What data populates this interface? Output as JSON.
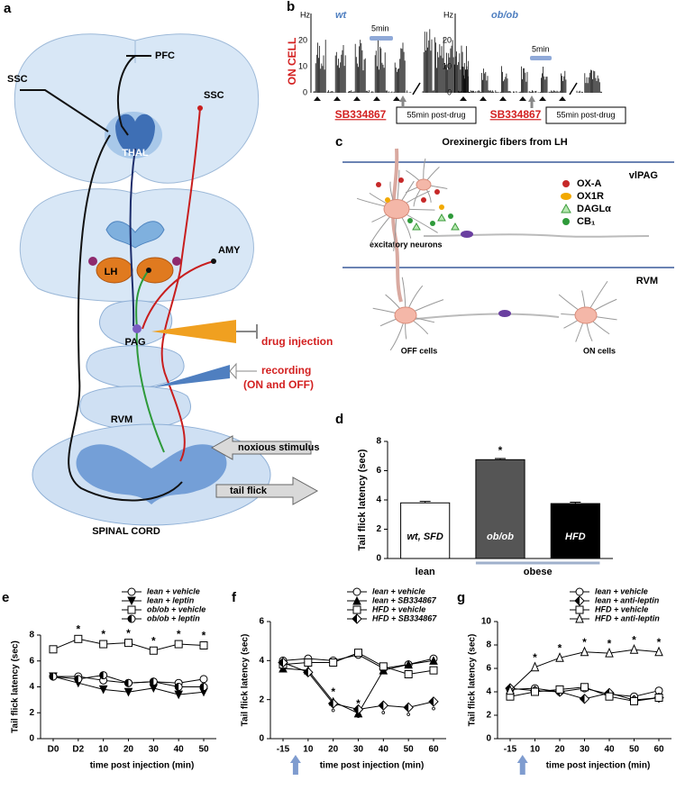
{
  "panel_a": {
    "letter": "a",
    "pfc": "PFC",
    "ssc_left": "SSC",
    "ssc_right": "SSC",
    "thal": "THAL",
    "amy": "AMY",
    "lh": "LH",
    "pag": "PAG",
    "drug_injection": "drug injection",
    "recording": "recording",
    "recording_cells": "(ON and OFF)",
    "rvm": "RVM",
    "noxious_stimulus": "noxious stimulus",
    "tail_flick": "tail flick",
    "spinal_cord": "SPINAL CORD"
  },
  "panel_b": {
    "letter": "b",
    "row_label": "ON CELL",
    "traces": [
      {
        "unit": "Hz",
        "ticks": [
          "20",
          "10",
          "0"
        ],
        "label": "wt",
        "scale_bar": "5min",
        "drug": "SB334867",
        "post_drug": "55min post-drug"
      },
      {
        "unit": "Hz",
        "ticks": [
          "20",
          "10",
          "0"
        ],
        "label": "ob/ob",
        "scale_bar": "5min",
        "drug": "SB334867",
        "post_drug": "55min post-drug"
      }
    ]
  },
  "panel_c": {
    "letter": "c",
    "title": "Orexinergic fibers from LH",
    "top_region": "vlPAG",
    "bottom_region": "RVM",
    "legend": [
      "OX-A",
      "OX1R",
      "DAGLα",
      "CB₁"
    ],
    "excitatory": "excitatory neurons",
    "off_cells": "OFF cells",
    "on_cells": "ON cells"
  },
  "chart_data": [
    {
      "panel": "d",
      "type": "bar",
      "ylabel": "Tail flick latency (sec)",
      "categories": [
        "wt, SFD",
        "ob/ob",
        "HFD"
      ],
      "values": [
        3.8,
        6.75,
        3.75
      ],
      "errors": [
        0.1,
        0.08,
        0.1
      ],
      "colors": [
        "#ffffff",
        "#555555",
        "#000000"
      ],
      "ylim": [
        0,
        8
      ],
      "yticks": [
        0,
        2,
        4,
        6,
        8
      ],
      "groups": [
        {
          "label": "lean",
          "members": [
            "wt, SFD"
          ]
        },
        {
          "label": "obese",
          "members": [
            "ob/ob",
            "HFD"
          ]
        }
      ],
      "significance": [
        {
          "label": "*",
          "at": [
            "ob/ob"
          ]
        }
      ]
    },
    {
      "panel": "e",
      "type": "line",
      "ylabel": "Tail flick latency (sec)",
      "xlabel": "time post injection (min)",
      "categories": [
        "D0",
        "D2",
        "10",
        "20",
        "30",
        "40",
        "50"
      ],
      "ylim": [
        0,
        8
      ],
      "yticks": [
        0,
        2,
        4,
        6,
        8
      ],
      "series": [
        {
          "name": "lean + vehicle",
          "color": "#000000",
          "marker": "circle-open",
          "values": [
            4.8,
            4.8,
            4.5,
            4.3,
            4.4,
            4.3,
            4.6
          ]
        },
        {
          "name": "lean + leptin",
          "color": "#000000",
          "marker": "triangle-down",
          "values": [
            4.8,
            4.3,
            3.8,
            3.6,
            3.9,
            3.4,
            3.6
          ]
        },
        {
          "name": "ob/ob + vehicle",
          "color": "#000000",
          "marker": "square-open",
          "values": [
            6.9,
            7.7,
            7.3,
            7.4,
            6.8,
            7.3,
            7.2
          ]
        },
        {
          "name": "ob/ob + leptin",
          "color": "#000000",
          "marker": "circle-half",
          "values": [
            4.8,
            4.6,
            4.9,
            4.3,
            4.4,
            4.0,
            4.0
          ]
        }
      ],
      "significance": [
        {
          "label": "*",
          "series": "ob/ob + vehicle",
          "side": "above",
          "at": [
            "D2",
            "10",
            "20",
            "30",
            "40",
            "50"
          ]
        }
      ]
    },
    {
      "panel": "f",
      "type": "line",
      "ylabel": "Tail flick latency (sec)",
      "xlabel": "time post injection (min)",
      "injection_marker": true,
      "categories": [
        "-15",
        "10",
        "20",
        "30",
        "40",
        "50",
        "60"
      ],
      "ylim": [
        0,
        6
      ],
      "yticks": [
        0,
        2,
        4,
        6
      ],
      "series": [
        {
          "name": "lean + vehicle",
          "color": "#000000",
          "marker": "circle-open",
          "values": [
            4.0,
            4.1,
            4.0,
            4.3,
            3.6,
            3.8,
            4.1
          ]
        },
        {
          "name": "lean + SB334867",
          "color": "#000000",
          "marker": "triangle-up",
          "values": [
            3.6,
            3.5,
            1.9,
            1.3,
            3.5,
            3.8,
            4.0
          ]
        },
        {
          "name": "HFD + vehicle",
          "color": "#000000",
          "marker": "square-open",
          "values": [
            3.8,
            3.9,
            3.9,
            4.4,
            3.7,
            3.3,
            3.5
          ]
        },
        {
          "name": "HFD + SB334867",
          "color": "#000000",
          "marker": "diamond-half",
          "values": [
            3.9,
            3.4,
            1.8,
            1.5,
            1.7,
            1.6,
            1.9
          ]
        }
      ],
      "significance": [
        {
          "label": "*",
          "series": "lean + SB334867",
          "side": "above",
          "at": [
            "20",
            "30"
          ]
        },
        {
          "label": "°",
          "series": "HFD + SB334867",
          "side": "below",
          "at": [
            "20",
            "30",
            "40",
            "50",
            "60"
          ]
        }
      ]
    },
    {
      "panel": "g",
      "type": "line",
      "ylabel": "Tail flick latency (sec)",
      "xlabel": "time post injection (min)",
      "injection_marker": true,
      "categories": [
        "-15",
        "10",
        "20",
        "30",
        "40",
        "50",
        "60"
      ],
      "ylim": [
        0,
        10
      ],
      "yticks": [
        0,
        2,
        4,
        6,
        8,
        10
      ],
      "series": [
        {
          "name": "lean + vehicle",
          "color": "#000000",
          "marker": "circle-open",
          "values": [
            4.2,
            4.3,
            4.0,
            4.3,
            3.8,
            3.6,
            4.1
          ]
        },
        {
          "name": "lean + anti-leptin",
          "color": "#000000",
          "marker": "diamond-half",
          "values": [
            4.3,
            4.1,
            4.0,
            3.4,
            3.9,
            3.3,
            3.5
          ]
        },
        {
          "name": "HFD + vehicle",
          "color": "#000000",
          "marker": "square-open",
          "values": [
            3.6,
            4.0,
            4.2,
            4.4,
            3.6,
            3.2,
            3.5
          ]
        },
        {
          "name": "HFD + anti-leptin",
          "color": "#000000",
          "marker": "triangle-open",
          "values": [
            4.1,
            6.1,
            6.9,
            7.4,
            7.3,
            7.6,
            7.4
          ]
        }
      ],
      "significance": [
        {
          "label": "*",
          "series": "HFD + anti-leptin",
          "side": "above",
          "at": [
            "10",
            "20",
            "30",
            "40",
            "50",
            "60"
          ]
        }
      ]
    }
  ]
}
